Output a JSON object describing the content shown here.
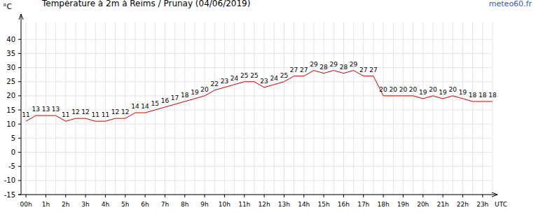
{
  "chart_data": {
    "type": "line",
    "title": "Température à 2m à Reims / Prunay (04/06/2019)",
    "annotations": [
      "meteo60.fr"
    ],
    "y_label": "°C",
    "x_label": "UTC",
    "x": [
      0,
      0.5,
      1,
      1.5,
      2,
      2.5,
      3,
      3.5,
      4,
      4.5,
      5,
      5.5,
      6,
      6.5,
      7,
      7.5,
      8,
      8.5,
      9,
      9.5,
      10,
      10.5,
      11,
      11.5,
      12,
      12.5,
      13,
      13.5,
      14,
      14.5,
      15,
      15.5,
      16,
      16.5,
      17,
      17.5,
      18,
      18.5,
      19,
      19.5,
      20,
      20.5,
      21,
      21.5,
      22,
      22.5,
      23,
      23.5
    ],
    "series": [
      {
        "name": "Température",
        "color": "#cc0000",
        "values": [
          11,
          13,
          13,
          13,
          11,
          12,
          12,
          11,
          11,
          12,
          12,
          14,
          14,
          15,
          16,
          17,
          18,
          19,
          20,
          22,
          23,
          24,
          25,
          25,
          23,
          24,
          25,
          27,
          27,
          29,
          28,
          29,
          28,
          29,
          27,
          27,
          20,
          20,
          20,
          20,
          19,
          20,
          19,
          20,
          19,
          18,
          18,
          18
        ]
      }
    ],
    "xlim": [
      -0.25,
      23.75
    ],
    "xticks": [
      {
        "value": 0,
        "label": "00h"
      },
      {
        "value": 1,
        "label": "1h"
      },
      {
        "value": 2,
        "label": "2h"
      },
      {
        "value": 3,
        "label": "3h"
      },
      {
        "value": 4,
        "label": "4h"
      },
      {
        "value": 5,
        "label": "5h"
      },
      {
        "value": 6,
        "label": "6h"
      },
      {
        "value": 7,
        "label": "7h"
      },
      {
        "value": 8,
        "label": "8h"
      },
      {
        "value": 9,
        "label": "9h"
      },
      {
        "value": 10,
        "label": "10h"
      },
      {
        "value": 11,
        "label": "11h"
      },
      {
        "value": 12,
        "label": "12h"
      },
      {
        "value": 13,
        "label": "13h"
      },
      {
        "value": 14,
        "label": "14h"
      },
      {
        "value": 15,
        "label": "15h"
      },
      {
        "value": 16,
        "label": "16h"
      },
      {
        "value": 17,
        "label": "17h"
      },
      {
        "value": 18,
        "label": "18h"
      },
      {
        "value": 19,
        "label": "19h"
      },
      {
        "value": 20,
        "label": "20h"
      },
      {
        "value": 21,
        "label": "21h"
      },
      {
        "value": 22,
        "label": "22h"
      },
      {
        "value": 23,
        "label": "23h"
      }
    ],
    "ylim": [
      -15,
      48.5
    ],
    "yticks": [
      -15,
      -10,
      -5,
      0,
      5,
      10,
      15,
      20,
      25,
      30,
      35,
      40
    ],
    "grid": true,
    "data_labels": true
  }
}
